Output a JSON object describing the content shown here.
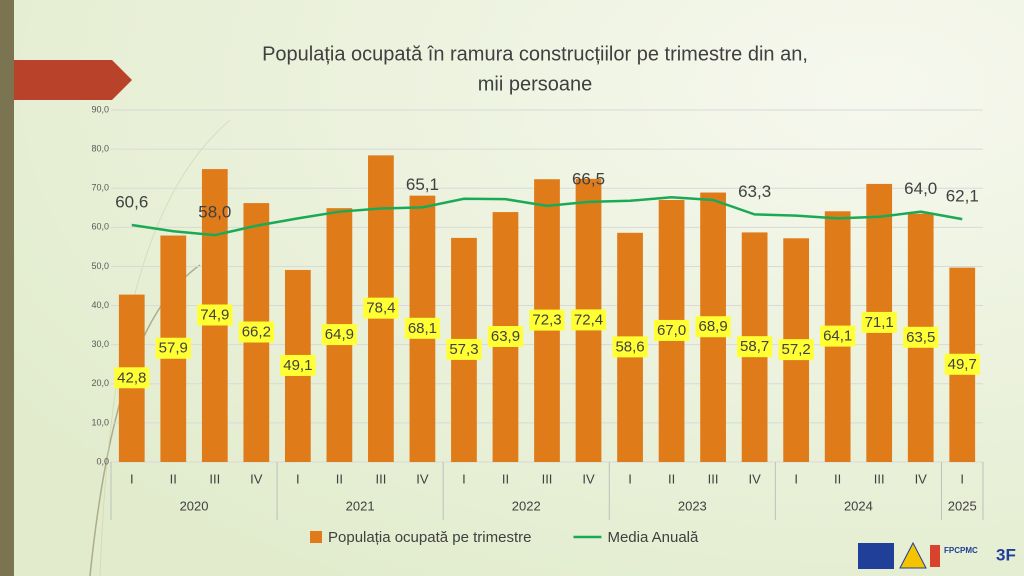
{
  "chart_data": {
    "type": "bar-line",
    "title": "Populația ocupată în ramura construcțiilor pe trimestre din an,",
    "subtitle": "mii persoane",
    "groups": [
      {
        "name": "2020",
        "categories": [
          "I",
          "II",
          "III",
          "IV"
        ]
      },
      {
        "name": "2021",
        "categories": [
          "I",
          "II",
          "III",
          "IV"
        ]
      },
      {
        "name": "2022",
        "categories": [
          "I",
          "II",
          "III",
          "IV"
        ]
      },
      {
        "name": "2023",
        "categories": [
          "I",
          "II",
          "III",
          "IV"
        ]
      },
      {
        "name": "2024",
        "categories": [
          "I",
          "II",
          "III",
          "IV"
        ]
      },
      {
        "name": "2025",
        "categories": [
          "I"
        ]
      }
    ],
    "series": [
      {
        "name": "Populația ocupată pe trimestre",
        "type": "bar",
        "color": "#e07b1a",
        "values": [
          42.8,
          57.9,
          74.9,
          66.2,
          49.1,
          64.9,
          78.4,
          68.1,
          57.3,
          63.9,
          72.3,
          72.4,
          58.6,
          67.0,
          68.9,
          58.7,
          57.2,
          64.1,
          71.1,
          63.5,
          49.7
        ],
        "value_labels": [
          "42,8",
          "57,9",
          "74,9",
          "66,2",
          "49,1",
          "64,9",
          "78,4",
          "68,1",
          "57,3",
          "63,9",
          "72,3",
          "72,4",
          "58,6",
          "67,0",
          "68,9",
          "58,7",
          "57,2",
          "64,1",
          "71,1",
          "63,5",
          "49,7"
        ]
      },
      {
        "name": "Media Anuală",
        "type": "line",
        "color": "#1aaa55",
        "values": [
          60.6,
          59.0,
          58.0,
          60.4,
          62.3,
          64.0,
          64.8,
          65.1,
          67.3,
          67.2,
          65.5,
          66.5,
          66.8,
          67.7,
          67.0,
          63.3,
          63.0,
          62.3,
          62.7,
          64.0,
          62.1
        ],
        "value_labels": [
          "60,6",
          null,
          "58,0",
          null,
          null,
          null,
          null,
          "65,1",
          null,
          null,
          null,
          "66,5",
          null,
          null,
          null,
          "63,3",
          null,
          null,
          null,
          "64,0",
          "62,1"
        ]
      }
    ],
    "ylim": [
      0,
      90
    ],
    "yticks": [
      {
        "value": 0,
        "label": "0,0"
      },
      {
        "value": 10,
        "label": "10,0"
      },
      {
        "value": 20,
        "label": "20,0"
      },
      {
        "value": 30,
        "label": "30,0"
      },
      {
        "value": 40,
        "label": "40,0"
      },
      {
        "value": 50,
        "label": "50,0"
      },
      {
        "value": 60,
        "label": "60,0"
      },
      {
        "value": 70,
        "label": "70,0"
      },
      {
        "value": 80,
        "label": "80,0"
      },
      {
        "value": 90,
        "label": "90,0"
      }
    ],
    "grid": true,
    "legend": "bottom"
  },
  "logos": [
    "FPCPMC",
    "3F"
  ]
}
